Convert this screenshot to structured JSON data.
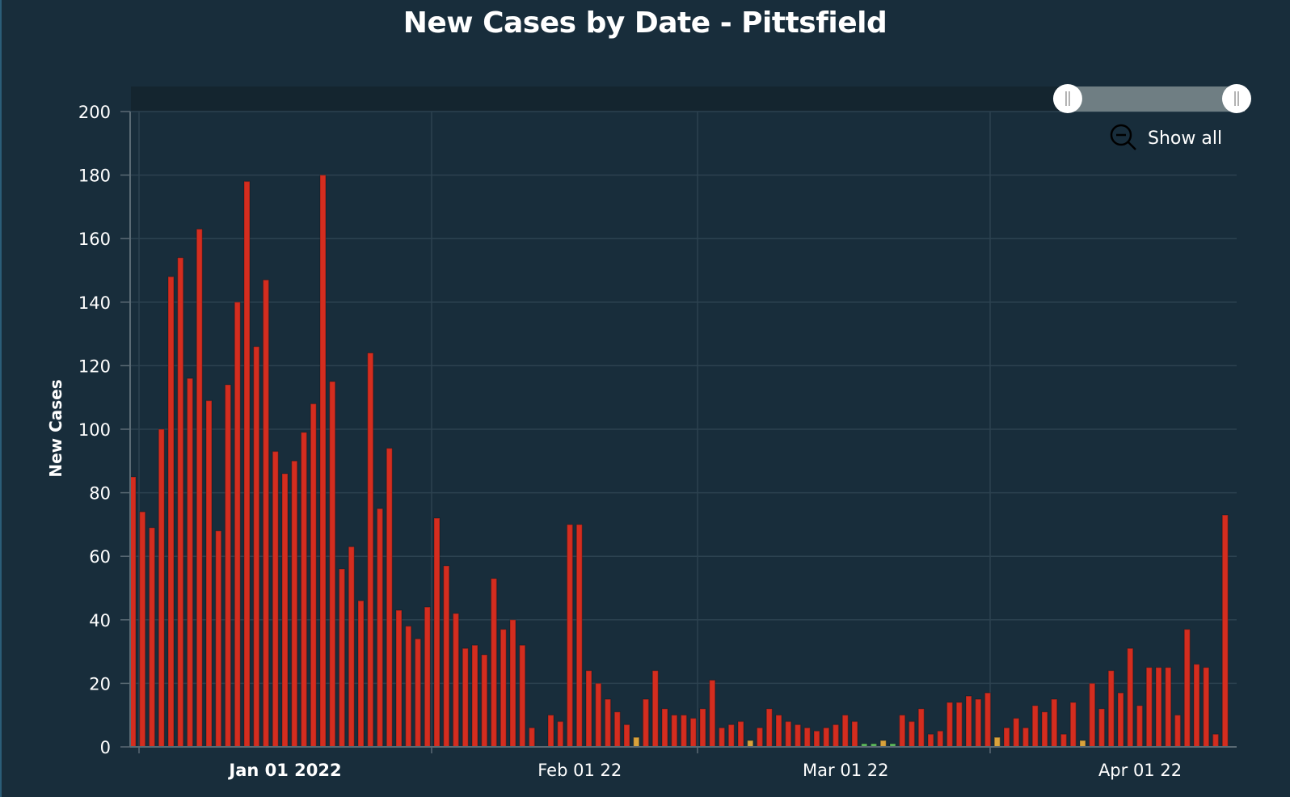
{
  "chart_data": {
    "type": "bar",
    "title": "New Cases by Date - Pittsfield",
    "xlabel": "",
    "ylabel": "New Cases",
    "ylim": [
      0,
      200
    ],
    "yticks": [
      0,
      20,
      40,
      60,
      80,
      100,
      120,
      140,
      160,
      180,
      200
    ],
    "xticks": [
      {
        "date": "2022-01-01",
        "label": "Jan 01 2022",
        "bold": true
      },
      {
        "date": "2022-02-01",
        "label": "Feb 01 22",
        "bold": false
      },
      {
        "date": "2022-03-01",
        "label": "Mar 01 22",
        "bold": false
      },
      {
        "date": "2022-04-01",
        "label": "Apr 01 22",
        "bold": false
      }
    ],
    "grid": true,
    "colors": {
      "high": "#d42d1f",
      "medium": "#d9a23b",
      "low": "#5cb85c",
      "background": "#182d3b"
    },
    "series": [
      {
        "values": [
          [
            "2021-12-16",
            85,
            "high"
          ],
          [
            "2021-12-17",
            74,
            "high"
          ],
          [
            "2021-12-18",
            69,
            "high"
          ],
          [
            "2021-12-19",
            100,
            "high"
          ],
          [
            "2021-12-20",
            148,
            "high"
          ],
          [
            "2021-12-21",
            154,
            "high"
          ],
          [
            "2021-12-22",
            116,
            "high"
          ],
          [
            "2021-12-23",
            163,
            "high"
          ],
          [
            "2021-12-24",
            109,
            "high"
          ],
          [
            "2021-12-25",
            68,
            "high"
          ],
          [
            "2021-12-26",
            114,
            "high"
          ],
          [
            "2021-12-27",
            140,
            "high"
          ],
          [
            "2021-12-28",
            178,
            "high"
          ],
          [
            "2021-12-29",
            126,
            "high"
          ],
          [
            "2021-12-30",
            147,
            "high"
          ],
          [
            "2021-12-31",
            93,
            "high"
          ],
          [
            "2022-01-01",
            86,
            "high"
          ],
          [
            "2022-01-02",
            90,
            "high"
          ],
          [
            "2022-01-03",
            99,
            "high"
          ],
          [
            "2022-01-04",
            108,
            "high"
          ],
          [
            "2022-01-05",
            180,
            "high"
          ],
          [
            "2022-01-06",
            115,
            "high"
          ],
          [
            "2022-01-07",
            56,
            "high"
          ],
          [
            "2022-01-08",
            63,
            "high"
          ],
          [
            "2022-01-09",
            46,
            "high"
          ],
          [
            "2022-01-10",
            124,
            "high"
          ],
          [
            "2022-01-11",
            75,
            "high"
          ],
          [
            "2022-01-12",
            94,
            "high"
          ],
          [
            "2022-01-13",
            43,
            "high"
          ],
          [
            "2022-01-14",
            38,
            "high"
          ],
          [
            "2022-01-15",
            34,
            "high"
          ],
          [
            "2022-01-16",
            44,
            "high"
          ],
          [
            "2022-01-17",
            72,
            "high"
          ],
          [
            "2022-01-18",
            57,
            "high"
          ],
          [
            "2022-01-19",
            42,
            "high"
          ],
          [
            "2022-01-20",
            31,
            "high"
          ],
          [
            "2022-01-21",
            32,
            "high"
          ],
          [
            "2022-01-22",
            29,
            "high"
          ],
          [
            "2022-01-23",
            53,
            "high"
          ],
          [
            "2022-01-24",
            37,
            "high"
          ],
          [
            "2022-01-25",
            40,
            "high"
          ],
          [
            "2022-01-26",
            32,
            "high"
          ],
          [
            "2022-01-27",
            6,
            "high"
          ],
          [
            "2022-01-29",
            10,
            "high"
          ],
          [
            "2022-01-30",
            8,
            "high"
          ],
          [
            "2022-01-31",
            70,
            "high"
          ],
          [
            "2022-02-01",
            70,
            "high"
          ],
          [
            "2022-02-02",
            24,
            "high"
          ],
          [
            "2022-02-03",
            20,
            "high"
          ],
          [
            "2022-02-04",
            15,
            "high"
          ],
          [
            "2022-02-05",
            11,
            "high"
          ],
          [
            "2022-02-06",
            7,
            "high"
          ],
          [
            "2022-02-07",
            3,
            "medium"
          ],
          [
            "2022-02-08",
            15,
            "high"
          ],
          [
            "2022-02-09",
            24,
            "high"
          ],
          [
            "2022-02-10",
            12,
            "high"
          ],
          [
            "2022-02-11",
            10,
            "high"
          ],
          [
            "2022-02-12",
            10,
            "high"
          ],
          [
            "2022-02-13",
            9,
            "high"
          ],
          [
            "2022-02-14",
            12,
            "high"
          ],
          [
            "2022-02-15",
            21,
            "high"
          ],
          [
            "2022-02-16",
            6,
            "high"
          ],
          [
            "2022-02-17",
            7,
            "high"
          ],
          [
            "2022-02-18",
            8,
            "high"
          ],
          [
            "2022-02-19",
            2,
            "medium"
          ],
          [
            "2022-02-20",
            6,
            "high"
          ],
          [
            "2022-02-21",
            12,
            "high"
          ],
          [
            "2022-02-22",
            10,
            "high"
          ],
          [
            "2022-02-23",
            8,
            "high"
          ],
          [
            "2022-02-24",
            7,
            "high"
          ],
          [
            "2022-02-25",
            6,
            "high"
          ],
          [
            "2022-02-26",
            5,
            "high"
          ],
          [
            "2022-02-27",
            6,
            "high"
          ],
          [
            "2022-02-28",
            7,
            "high"
          ],
          [
            "2022-03-01",
            10,
            "high"
          ],
          [
            "2022-03-02",
            8,
            "high"
          ],
          [
            "2022-03-03",
            1,
            "low"
          ],
          [
            "2022-03-04",
            1,
            "low"
          ],
          [
            "2022-03-05",
            2,
            "medium"
          ],
          [
            "2022-03-06",
            1,
            "low"
          ],
          [
            "2022-03-07",
            10,
            "high"
          ],
          [
            "2022-03-08",
            8,
            "high"
          ],
          [
            "2022-03-09",
            12,
            "high"
          ],
          [
            "2022-03-10",
            4,
            "high"
          ],
          [
            "2022-03-11",
            5,
            "high"
          ],
          [
            "2022-03-12",
            14,
            "high"
          ],
          [
            "2022-03-13",
            14,
            "high"
          ],
          [
            "2022-03-14",
            16,
            "high"
          ],
          [
            "2022-03-15",
            15,
            "high"
          ],
          [
            "2022-03-16",
            17,
            "high"
          ],
          [
            "2022-03-17",
            3,
            "medium"
          ],
          [
            "2022-03-18",
            6,
            "high"
          ],
          [
            "2022-03-19",
            9,
            "high"
          ],
          [
            "2022-03-20",
            6,
            "high"
          ],
          [
            "2022-03-21",
            13,
            "high"
          ],
          [
            "2022-03-22",
            11,
            "high"
          ],
          [
            "2022-03-23",
            15,
            "high"
          ],
          [
            "2022-03-24",
            4,
            "high"
          ],
          [
            "2022-03-25",
            14,
            "high"
          ],
          [
            "2022-03-26",
            2,
            "medium"
          ],
          [
            "2022-03-27",
            20,
            "high"
          ],
          [
            "2022-03-28",
            12,
            "high"
          ],
          [
            "2022-03-29",
            24,
            "high"
          ],
          [
            "2022-03-30",
            17,
            "high"
          ],
          [
            "2022-03-31",
            31,
            "high"
          ],
          [
            "2022-04-01",
            13,
            "high"
          ],
          [
            "2022-04-02",
            25,
            "high"
          ],
          [
            "2022-04-03",
            25,
            "high"
          ],
          [
            "2022-04-04",
            25,
            "high"
          ],
          [
            "2022-04-05",
            10,
            "high"
          ],
          [
            "2022-04-06",
            37,
            "high"
          ],
          [
            "2022-04-07",
            26,
            "high"
          ],
          [
            "2022-04-08",
            25,
            "high"
          ],
          [
            "2022-04-09",
            4,
            "high"
          ],
          [
            "2022-04-10",
            73,
            "high"
          ]
        ]
      }
    ]
  },
  "navigator": {
    "range_start": 0.84,
    "range_end": 1.0
  },
  "controls": {
    "show_all_label": "Show all",
    "show_all_icon": "zoom-out-icon"
  }
}
